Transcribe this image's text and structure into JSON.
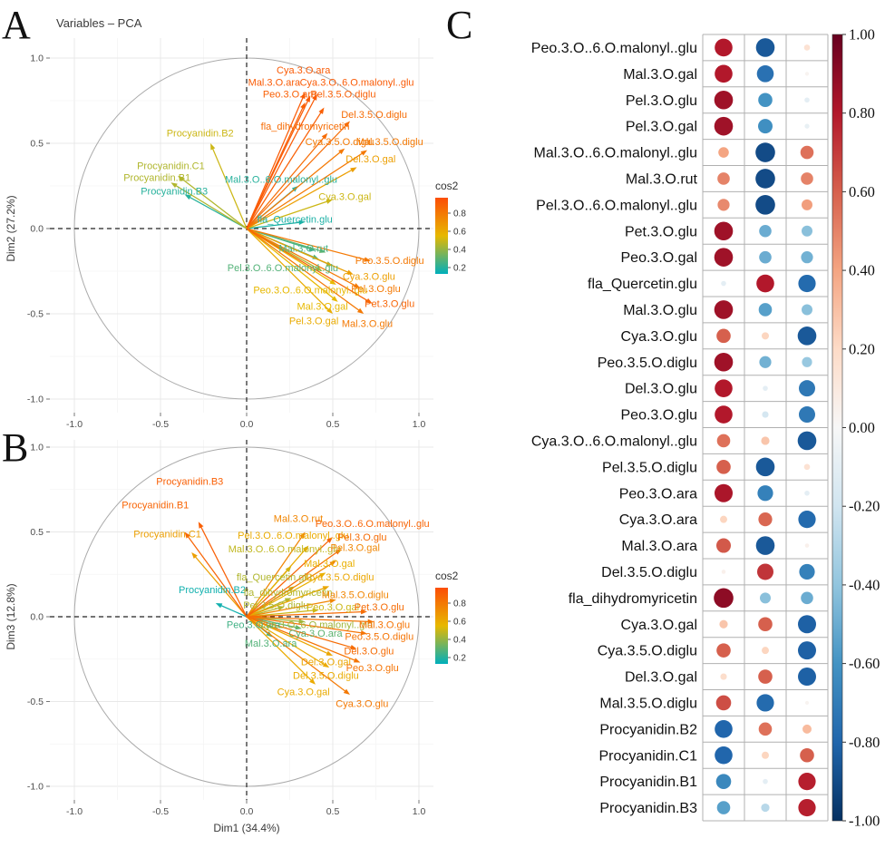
{
  "panels": {
    "a_label": "A",
    "b_label": "B",
    "c_label": "C"
  },
  "colors": {
    "cos2_gradient": [
      "#00AFBB",
      "#E7B800",
      "#FC4E07"
    ],
    "rdbu_diverging": [
      "#053061",
      "#2166AC",
      "#4393C3",
      "#92C5DE",
      "#D1E5F0",
      "#F7F7F7",
      "#FDDBC7",
      "#F4A582",
      "#D6604D",
      "#B2182B",
      "#67001F"
    ],
    "dashed_axis": "#222222",
    "circle": "#aaaaaa",
    "grid_major": "#e8e8e8",
    "grid_minor": "#f4f4f4",
    "tick_text": "#4d4d4d"
  },
  "chart_data": [
    {
      "id": "A",
      "type": "scatter",
      "subtype": "pca-variable-correlation-circle",
      "title": "Variables – PCA",
      "xlabel": "",
      "ylabel": "Dim2 (27.2%)",
      "xlim": [
        -1.15,
        1.15
      ],
      "ylim": [
        -1.15,
        1.15
      ],
      "xticks": [
        "-1.0",
        "-0.5",
        "0.0",
        "0.5",
        "1.0"
      ],
      "yticks": [
        "1.0",
        "0.5",
        "0.0",
        "-0.5",
        "-1.0"
      ],
      "legend": {
        "title": "cos2",
        "ticks": [
          "0.8",
          "0.6",
          "0.4",
          "0.2"
        ],
        "range": [
          0.13,
          0.97
        ],
        "position": "right"
      },
      "grid": true,
      "arrows": [
        {
          "name": "Cya.3.O.ara",
          "x": 0.34,
          "y": 0.8,
          "cos2": 0.92,
          "lx": 0.33,
          "ly": 0.93
        },
        {
          "name": "Mal.3.O.ara",
          "x": 0.37,
          "y": 0.78,
          "cos2": 0.92,
          "lx": 0.16,
          "ly": 0.86
        },
        {
          "name": "Cya.3.O..6.O.malonyl..glu",
          "x": 0.41,
          "y": 0.79,
          "cos2": 0.92,
          "lx": 0.64,
          "ly": 0.86
        },
        {
          "name": "Peo.3.O.ara",
          "x": 0.34,
          "y": 0.74,
          "cos2": 0.9,
          "lx": 0.25,
          "ly": 0.79
        },
        {
          "name": "Pel.3.5.O.diglu",
          "x": 0.45,
          "y": 0.71,
          "cos2": 0.9,
          "lx": 0.56,
          "ly": 0.79
        },
        {
          "name": "Del.3.5.O.diglu",
          "x": 0.6,
          "y": 0.63,
          "cos2": 0.85,
          "lx": 0.74,
          "ly": 0.67
        },
        {
          "name": "fla_dihydromyricetin",
          "x": 0.47,
          "y": 0.56,
          "cos2": 0.85,
          "lx": 0.34,
          "ly": 0.6
        },
        {
          "name": "Cya.3.5.O.diglu",
          "x": 0.57,
          "y": 0.47,
          "cos2": 0.8,
          "lx": 0.54,
          "ly": 0.51
        },
        {
          "name": "Mal.3.5.O.diglu",
          "x": 0.7,
          "y": 0.46,
          "cos2": 0.8,
          "lx": 0.83,
          "ly": 0.51
        },
        {
          "name": "Del.3.O.gal",
          "x": 0.64,
          "y": 0.36,
          "cos2": 0.65,
          "lx": 0.72,
          "ly": 0.41
        },
        {
          "name": "Procyanidin.B2",
          "x": -0.21,
          "y": 0.5,
          "cos2": 0.5,
          "lx": -0.27,
          "ly": 0.56
        },
        {
          "name": "Procyanidin.C1",
          "x": -0.4,
          "y": 0.31,
          "cos2": 0.45,
          "lx": -0.44,
          "ly": 0.37
        },
        {
          "name": "Procyanidin.B1",
          "x": -0.44,
          "y": 0.27,
          "cos2": 0.45,
          "lx": -0.52,
          "ly": 0.3
        },
        {
          "name": "Procyanidin.B3",
          "x": -0.36,
          "y": 0.2,
          "cos2": 0.2,
          "lx": -0.42,
          "ly": 0.22
        },
        {
          "name": "Mal.3.O..6.O.malonyl..glu",
          "x": 0.3,
          "y": 0.25,
          "cos2": 0.2,
          "lx": 0.2,
          "ly": 0.29
        },
        {
          "name": "Cya.3.O.gal",
          "x": 0.5,
          "y": 0.17,
          "cos2": 0.5,
          "lx": 0.57,
          "ly": 0.19
        },
        {
          "name": "fla_Quercetin.glu",
          "x": 0.34,
          "y": 0.04,
          "cos2": 0.18,
          "lx": 0.28,
          "ly": 0.055
        },
        {
          "name": "Mal.3.O.rut",
          "x": 0.4,
          "y": -0.13,
          "cos2": 0.25,
          "lx": 0.33,
          "ly": -0.115
        },
        {
          "name": "Pel.3.O..6.O.malonyl..glu",
          "x": 0.42,
          "y": -0.18,
          "cos2": 0.28,
          "lx": 0.21,
          "ly": -0.23
        },
        {
          "name": "Peo.3.5.O.diglu",
          "x": 0.72,
          "y": -0.19,
          "cos2": 0.8,
          "lx": 0.83,
          "ly": -0.185
        },
        {
          "name": "Cya.3.O.glu",
          "x": 0.62,
          "y": -0.27,
          "cos2": 0.65,
          "lx": 0.71,
          "ly": -0.28
        },
        {
          "name": "Peo.3.O..6.O.malonyl..glu",
          "x": 0.52,
          "y": -0.33,
          "cos2": 0.55,
          "lx": 0.37,
          "ly": -0.36
        },
        {
          "name": "Pel.3.O.glu",
          "x": 0.66,
          "y": -0.35,
          "cos2": 0.8,
          "lx": 0.75,
          "ly": -0.35
        },
        {
          "name": "Pet.3.O.glu",
          "x": 0.73,
          "y": -0.44,
          "cos2": 0.88,
          "lx": 0.83,
          "ly": -0.44
        },
        {
          "name": "Mal.3.O.gal",
          "x": 0.53,
          "y": -0.43,
          "cos2": 0.55,
          "lx": 0.44,
          "ly": -0.455
        },
        {
          "name": "Pel.3.O.gal",
          "x": 0.5,
          "y": -0.5,
          "cos2": 0.6,
          "lx": 0.39,
          "ly": -0.54
        },
        {
          "name": "Mal.3.O.glu",
          "x": 0.68,
          "y": -0.5,
          "cos2": 0.8,
          "lx": 0.7,
          "ly": -0.555
        },
        {
          "name": "",
          "x": 0.46,
          "y": -0.14,
          "cos2": 0.3,
          "lx": null,
          "ly": null
        },
        {
          "name": "",
          "x": 0.5,
          "y": -0.22,
          "cos2": 0.4,
          "lx": null,
          "ly": null
        },
        {
          "name": "",
          "x": 0.44,
          "y": -0.25,
          "cos2": 0.45,
          "lx": null,
          "ly": null
        }
      ]
    },
    {
      "id": "B",
      "type": "scatter",
      "subtype": "pca-variable-correlation-circle",
      "title": "",
      "xlabel": "Dim1 (34.4%)",
      "ylabel": "Dim3 (12.8%)",
      "xlim": [
        -1.15,
        1.15
      ],
      "ylim": [
        -1.15,
        1.15
      ],
      "xticks": [
        "-1.0",
        "-0.5",
        "0.0",
        "0.5",
        "1.0"
      ],
      "yticks": [
        "1.0",
        "0.5",
        "0.0",
        "-0.5",
        "-1.0"
      ],
      "legend": {
        "title": "cos2",
        "ticks": [
          "0.8",
          "0.6",
          "0.4",
          "0.2"
        ],
        "range": [
          0.13,
          0.97
        ],
        "position": "right"
      },
      "grid": true,
      "arrows": [
        {
          "name": "Procyanidin.B3",
          "x": -0.28,
          "y": 0.56,
          "cos2": 0.9,
          "lx": -0.33,
          "ly": 0.8
        },
        {
          "name": "Procyanidin.B1",
          "x": -0.36,
          "y": 0.5,
          "cos2": 0.88,
          "lx": -0.53,
          "ly": 0.66
        },
        {
          "name": "Procyanidin.C1",
          "x": -0.32,
          "y": 0.38,
          "cos2": 0.65,
          "lx": -0.46,
          "ly": 0.49
        },
        {
          "name": "Procyanidin.B2",
          "x": -0.18,
          "y": 0.08,
          "cos2": 0.16,
          "lx": -0.2,
          "ly": 0.16
        },
        {
          "name": "Mal.3.O.rut",
          "x": 0.34,
          "y": 0.5,
          "cos2": 0.75,
          "lx": 0.3,
          "ly": 0.58
        },
        {
          "name": "Peo.3.O..6.O.malonyl..glu",
          "x": 0.5,
          "y": 0.47,
          "cos2": 0.88,
          "lx": 0.73,
          "ly": 0.55
        },
        {
          "name": "Pel.3.O..6.O.malonyl..glu",
          "x": 0.36,
          "y": 0.42,
          "cos2": 0.6,
          "lx": 0.27,
          "ly": 0.48
        },
        {
          "name": "Pel.3.O.glu",
          "x": 0.55,
          "y": 0.4,
          "cos2": 0.85,
          "lx": 0.67,
          "ly": 0.47
        },
        {
          "name": "Pel.3.O.gal",
          "x": 0.52,
          "y": 0.33,
          "cos2": 0.75,
          "lx": 0.63,
          "ly": 0.41
        },
        {
          "name": "Mal.3.O..6.O.malonyl..glu",
          "x": 0.26,
          "y": 0.3,
          "cos2": 0.48,
          "lx": 0.22,
          "ly": 0.4
        },
        {
          "name": "Mal.3.O.gal",
          "x": 0.46,
          "y": 0.26,
          "cos2": 0.58,
          "lx": 0.48,
          "ly": 0.315
        },
        {
          "name": "fla_Quercetin.glu",
          "x": 0.28,
          "y": 0.18,
          "cos2": 0.45,
          "lx": 0.16,
          "ly": 0.235
        },
        {
          "name": "Cya.3.5.O.diglu",
          "x": 0.48,
          "y": 0.18,
          "cos2": 0.62,
          "lx": 0.54,
          "ly": 0.235
        },
        {
          "name": "fla_dihydromyricetin",
          "x": 0.26,
          "y": 0.11,
          "cos2": 0.45,
          "lx": 0.24,
          "ly": 0.145
        },
        {
          "name": "Mal.3.5.O.diglu",
          "x": 0.52,
          "y": 0.1,
          "cos2": 0.75,
          "lx": 0.63,
          "ly": 0.13
        },
        {
          "name": "Pel.3.5.O.diglu",
          "x": 0.22,
          "y": 0.06,
          "cos2": 0.45,
          "lx": 0.17,
          "ly": 0.07
        },
        {
          "name": "Peo.3.O.gal",
          "x": 0.42,
          "y": 0.04,
          "cos2": 0.5,
          "lx": 0.5,
          "ly": 0.06
        },
        {
          "name": "Pet.3.O.glu",
          "x": 0.7,
          "y": 0.03,
          "cos2": 0.85,
          "lx": 0.77,
          "ly": 0.06
        },
        {
          "name": "Peo.3.O.ara",
          "x": 0.1,
          "y": -0.02,
          "cos2": 0.25,
          "lx": 0.04,
          "ly": -0.045
        },
        {
          "name": "Cya.3.O..6.O.malonyl..glu",
          "x": 0.34,
          "y": -0.03,
          "cos2": 0.42,
          "lx": 0.4,
          "ly": -0.045
        },
        {
          "name": "Mal.3.O.glu",
          "x": 0.74,
          "y": -0.03,
          "cos2": 0.82,
          "lx": 0.8,
          "ly": -0.045
        },
        {
          "name": "Cya.3.O.ara",
          "x": 0.32,
          "y": -0.07,
          "cos2": 0.3,
          "lx": 0.4,
          "ly": -0.095
        },
        {
          "name": "Peo.3.5.O.diglu",
          "x": 0.7,
          "y": -0.1,
          "cos2": 0.82,
          "lx": 0.77,
          "ly": -0.115
        },
        {
          "name": "Mal.3.O.ara",
          "x": 0.15,
          "y": -0.12,
          "cos2": 0.28,
          "lx": 0.14,
          "ly": -0.155
        },
        {
          "name": "Del.3.O.glu",
          "x": 0.64,
          "y": -0.19,
          "cos2": 0.85,
          "lx": 0.71,
          "ly": -0.2
        },
        {
          "name": "Del.3.O.gal",
          "x": 0.5,
          "y": -0.23,
          "cos2": 0.62,
          "lx": 0.46,
          "ly": -0.265
        },
        {
          "name": "Peo.3.O.glu",
          "x": 0.66,
          "y": -0.27,
          "cos2": 0.82,
          "lx": 0.73,
          "ly": -0.3
        },
        {
          "name": "Del.3.5.O.diglu",
          "x": 0.48,
          "y": -0.3,
          "cos2": 0.6,
          "lx": 0.46,
          "ly": -0.345
        },
        {
          "name": "Cya.3.O.gal",
          "x": 0.4,
          "y": -0.4,
          "cos2": 0.6,
          "lx": 0.33,
          "ly": -0.44
        },
        {
          "name": "Cya.3.O.glu",
          "x": 0.6,
          "y": -0.46,
          "cos2": 0.8,
          "lx": 0.67,
          "ly": -0.51
        }
      ]
    },
    {
      "id": "C",
      "type": "heatmap",
      "subtype": "correlation-dot-matrix",
      "columns": 3,
      "rows": [
        {
          "name": "Peo.3.O..6.O.malonyl..glu",
          "values": [
            0.8,
            -0.85,
            0.15
          ]
        },
        {
          "name": "Mal.3.O.gal",
          "values": [
            0.8,
            -0.75,
            0.03
          ]
        },
        {
          "name": "Pel.3.O.glu",
          "values": [
            0.85,
            -0.6,
            -0.1
          ]
        },
        {
          "name": "Pel.3.O.gal",
          "values": [
            0.85,
            -0.62,
            -0.08
          ]
        },
        {
          "name": "Mal.3.O..6.O.malonyl..glu",
          "values": [
            0.4,
            -0.9,
            0.55
          ]
        },
        {
          "name": "Mal.3.O.rut",
          "values": [
            0.5,
            -0.9,
            0.5
          ]
        },
        {
          "name": "Pel.3.O..6.O.malonyl..glu",
          "values": [
            0.48,
            -0.9,
            0.42
          ]
        },
        {
          "name": "Pet.3.O.glu",
          "values": [
            0.85,
            -0.5,
            -0.42
          ]
        },
        {
          "name": "Peo.3.O.gal",
          "values": [
            0.85,
            -0.5,
            -0.48
          ]
        },
        {
          "name": "fla_Quercetin.glu",
          "values": [
            -0.1,
            0.8,
            -0.78
          ]
        },
        {
          "name": "Mal.3.O.glu",
          "values": [
            0.85,
            -0.55,
            -0.42
          ]
        },
        {
          "name": "Cya.3.O.glu",
          "values": [
            0.6,
            0.22,
            -0.85
          ]
        },
        {
          "name": "Peo.3.5.O.diglu",
          "values": [
            0.85,
            -0.48,
            -0.38
          ]
        },
        {
          "name": "Del.3.O.glu",
          "values": [
            0.8,
            -0.1,
            -0.72
          ]
        },
        {
          "name": "Peo.3.O.glu",
          "values": [
            0.8,
            -0.18,
            -0.72
          ]
        },
        {
          "name": "Cya.3.O..6.O.malonyl..glu",
          "values": [
            0.55,
            0.28,
            -0.85
          ]
        },
        {
          "name": "Pel.3.5.O.diglu",
          "values": [
            0.6,
            -0.85,
            0.15
          ]
        },
        {
          "name": "Peo.3.O.ara",
          "values": [
            0.82,
            -0.68,
            -0.1
          ]
        },
        {
          "name": "Cya.3.O.ara",
          "values": [
            0.22,
            0.58,
            -0.78
          ]
        },
        {
          "name": "Mal.3.O.ara",
          "values": [
            0.62,
            -0.85,
            0.05
          ]
        },
        {
          "name": "Del.3.5.O.diglu",
          "values": [
            0.05,
            0.72,
            -0.68
          ]
        },
        {
          "name": "fla_dihydromyricetin",
          "values": [
            0.9,
            -0.42,
            -0.5
          ]
        },
        {
          "name": "Cya.3.O.gal",
          "values": [
            0.28,
            0.6,
            -0.82
          ]
        },
        {
          "name": "Cya.3.5.O.diglu",
          "values": [
            0.6,
            0.22,
            -0.82
          ]
        },
        {
          "name": "Del.3.O.gal",
          "values": [
            0.18,
            0.6,
            -0.82
          ]
        },
        {
          "name": "Mal.3.5.O.diglu",
          "values": [
            0.65,
            -0.78,
            0.03
          ]
        },
        {
          "name": "Procyanidin.B2",
          "values": [
            -0.8,
            0.55,
            0.32
          ]
        },
        {
          "name": "Procyanidin.C1",
          "values": [
            -0.8,
            0.22,
            0.6
          ]
        },
        {
          "name": "Procyanidin.B1",
          "values": [
            -0.65,
            -0.1,
            0.78
          ]
        },
        {
          "name": "Procyanidin.B3",
          "values": [
            -0.55,
            -0.28,
            0.78
          ]
        }
      ],
      "colorbar": {
        "ticks": [
          "1.00",
          "0.80",
          "0.60",
          "0.40",
          "0.20",
          "0.00",
          "-0.20",
          "-0.40",
          "-0.60",
          "-0.80",
          "-1.00"
        ],
        "min": -1,
        "max": 1
      }
    }
  ]
}
